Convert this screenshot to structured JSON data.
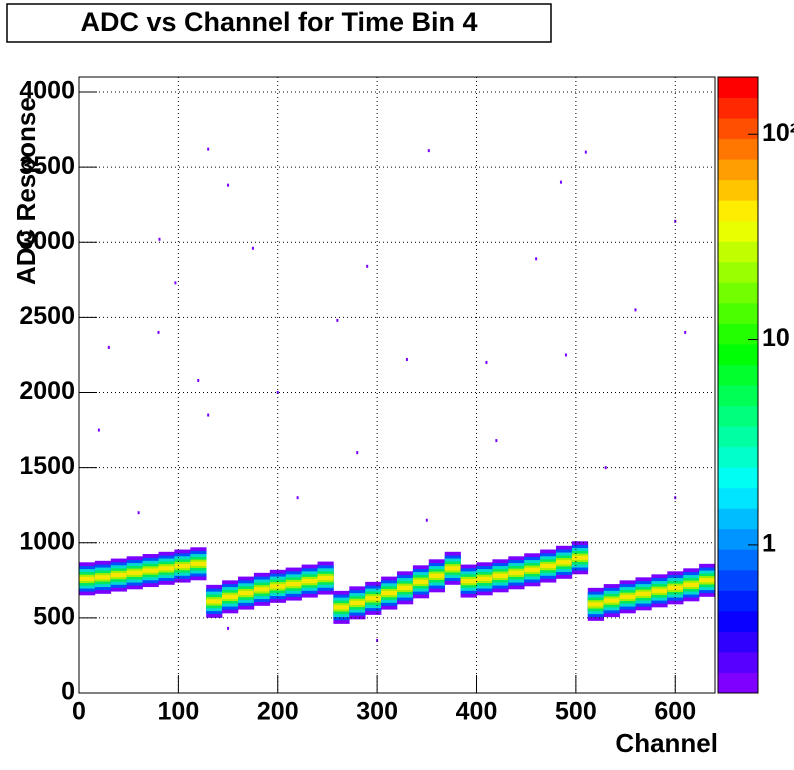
{
  "chart_data": {
    "type": "heatmap",
    "title": "ADC vs Channel for Time Bin 4",
    "xlabel": "Channel",
    "ylabel": "ADC Response",
    "xlim": [
      0,
      640
    ],
    "ylim": [
      0,
      4100
    ],
    "xticks": [
      0,
      100,
      200,
      300,
      400,
      500,
      600
    ],
    "yticks": [
      0,
      500,
      1000,
      1500,
      2000,
      2500,
      3000,
      3500,
      4000
    ],
    "grid": true,
    "zlog": true,
    "zlim": [
      0.19,
      190
    ],
    "zticks": [
      1,
      10,
      {
        "value": 100,
        "label": "10²"
      }
    ],
    "x": [
      0,
      16,
      32,
      48,
      64,
      80,
      96,
      112,
      128,
      144,
      160,
      176,
      192,
      208,
      224,
      240,
      256,
      272,
      288,
      304,
      320,
      336,
      352,
      368,
      384,
      400,
      416,
      432,
      448,
      464,
      480,
      496,
      512,
      528,
      544,
      560,
      576,
      592,
      608,
      624
    ],
    "values": [
      760,
      770,
      785,
      800,
      815,
      830,
      845,
      860,
      610,
      640,
      665,
      690,
      710,
      725,
      745,
      765,
      570,
      600,
      630,
      665,
      700,
      740,
      780,
      830,
      745,
      760,
      780,
      800,
      820,
      845,
      870,
      900,
      590,
      615,
      640,
      660,
      680,
      700,
      720,
      750
    ],
    "points": {
      "x": [
        81,
        97,
        130,
        150,
        175,
        290,
        352,
        510,
        485,
        460,
        600,
        30,
        80,
        120,
        200,
        260,
        330,
        410,
        490,
        560,
        610,
        20,
        130,
        280,
        420,
        530,
        60,
        220,
        350,
        600,
        300,
        150
      ],
      "y": [
        3020,
        2730,
        3620,
        3380,
        2960,
        2840,
        3610,
        3600,
        3400,
        2890,
        3140,
        2300,
        2400,
        2080,
        2000,
        2480,
        2220,
        2200,
        2250,
        2550,
        2400,
        1750,
        1850,
        1600,
        1680,
        1500,
        1200,
        1300,
        1150,
        1300,
        350,
        430
      ]
    }
  }
}
